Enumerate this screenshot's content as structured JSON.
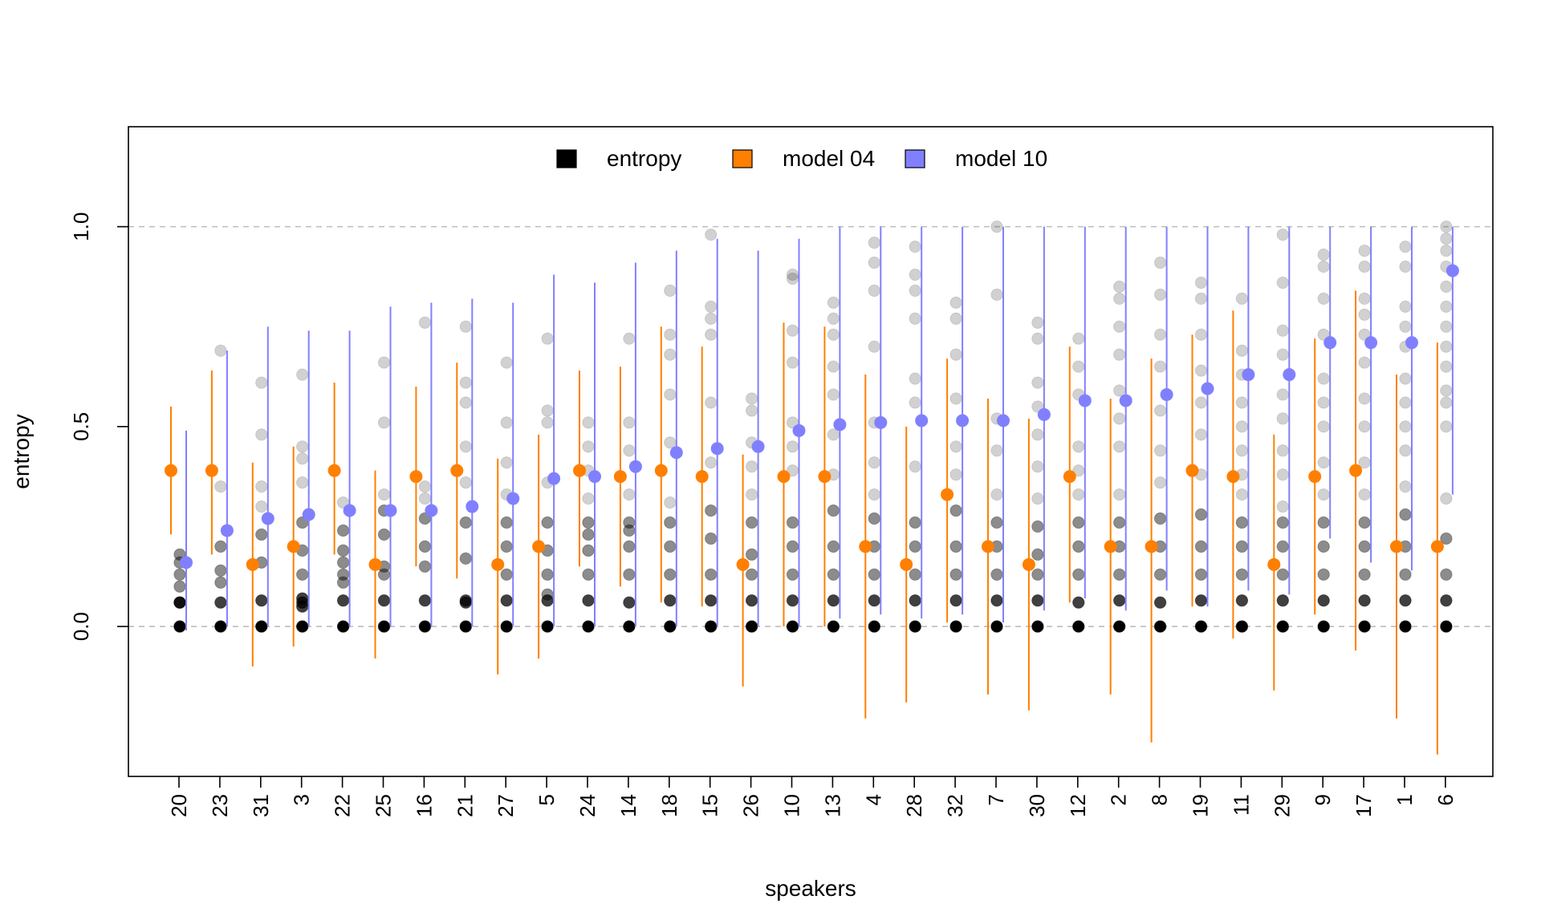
{
  "chart_data": {
    "type": "scatter",
    "title": "",
    "xlabel": "speakers",
    "ylabel": "entropy",
    "ylim": [
      -0.375,
      1.25
    ],
    "yticks": [
      0.0,
      0.5,
      1.0
    ],
    "ytick_labels": [
      "0.0",
      "0.5",
      "1.0"
    ],
    "reference_lines": [
      0.0,
      1.0
    ],
    "categories": [
      "20",
      "23",
      "31",
      "3",
      "22",
      "25",
      "16",
      "21",
      "27",
      "5",
      "24",
      "14",
      "18",
      "15",
      "26",
      "10",
      "13",
      "4",
      "28",
      "32",
      "7",
      "30",
      "12",
      "2",
      "8",
      "19",
      "11",
      "29",
      "9",
      "17",
      "1",
      "6"
    ],
    "legend": {
      "placement": "top",
      "entries": [
        {
          "label": "entropy",
          "color": "#000000"
        },
        {
          "label": "model 04",
          "color": "#ff7f00"
        },
        {
          "label": "model 10",
          "color": "#8080ff"
        }
      ]
    },
    "series": [
      {
        "name": "model 04",
        "color": "#ff7f00",
        "mean": [
          0.39,
          0.39,
          0.155,
          0.2,
          0.39,
          0.155,
          0.375,
          0.39,
          0.155,
          0.2,
          0.39,
          0.375,
          0.39,
          0.375,
          0.155,
          0.375,
          0.375,
          0.2,
          0.155,
          0.33,
          0.2,
          0.155,
          0.375,
          0.2,
          0.2,
          0.39,
          0.375,
          0.155,
          0.375,
          0.39,
          0.2,
          0.2
        ],
        "lower": [
          0.23,
          0.18,
          -0.1,
          -0.05,
          0.18,
          -0.08,
          0.15,
          0.12,
          -0.12,
          -0.08,
          0.15,
          0.1,
          0.06,
          0.05,
          -0.15,
          0.0,
          0.0,
          -0.23,
          -0.19,
          0.01,
          -0.17,
          -0.21,
          0.06,
          -0.17,
          -0.29,
          0.05,
          -0.03,
          -0.16,
          0.03,
          -0.06,
          -0.23,
          -0.32
        ],
        "upper": [
          0.55,
          0.64,
          0.41,
          0.45,
          0.61,
          0.39,
          0.6,
          0.66,
          0.42,
          0.48,
          0.64,
          0.65,
          0.75,
          0.7,
          0.43,
          0.76,
          0.75,
          0.63,
          0.5,
          0.67,
          0.57,
          0.52,
          0.7,
          0.57,
          0.67,
          0.73,
          0.79,
          0.48,
          0.72,
          0.84,
          0.63,
          0.71
        ]
      },
      {
        "name": "model 10",
        "color": "#8080ff",
        "mean": [
          0.16,
          0.24,
          0.27,
          0.28,
          0.29,
          0.29,
          0.29,
          0.3,
          0.32,
          0.37,
          0.375,
          0.4,
          0.435,
          0.445,
          0.45,
          0.49,
          0.505,
          0.51,
          0.515,
          0.515,
          0.515,
          0.53,
          0.565,
          0.565,
          0.58,
          0.595,
          0.63,
          0.63,
          0.71,
          0.71,
          0.71,
          0.89
        ],
        "lower": [
          -0.01,
          0.0,
          0.0,
          0.0,
          0.0,
          0.0,
          0.0,
          0.0,
          0.0,
          0.0,
          0.0,
          0.0,
          0.0,
          0.0,
          0.0,
          0.0,
          0.02,
          0.03,
          0.02,
          0.03,
          0.01,
          0.04,
          0.07,
          0.04,
          0.09,
          0.05,
          0.09,
          0.08,
          0.22,
          0.16,
          0.14,
          0.33
        ],
        "upper": [
          0.49,
          0.69,
          0.75,
          0.74,
          0.74,
          0.8,
          0.81,
          0.82,
          0.81,
          0.88,
          0.86,
          0.91,
          0.94,
          0.97,
          0.94,
          0.97,
          1.0,
          1.0,
          1.0,
          1.0,
          1.0,
          1.0,
          1.0,
          1.0,
          1.0,
          1.0,
          1.0,
          1.0,
          1.0,
          1.0,
          1.0,
          1.0
        ]
      },
      {
        "name": "entropy",
        "color": "#000000",
        "points": [
          [
            0,
            0.06,
            0.13,
            0.16,
            0.1,
            0.18,
            0.06
          ],
          [
            0,
            0.06,
            0.14,
            0.2,
            0.35,
            0.69,
            0.11
          ],
          [
            0,
            0.065,
            0.16,
            0.23,
            0.3,
            0.35,
            0.48,
            0.61
          ],
          [
            0,
            0.06,
            0.07,
            0.13,
            0.19,
            0.26,
            0.36,
            0.42,
            0.45,
            0.63,
            0.05
          ],
          [
            0,
            0.065,
            0.11,
            0.16,
            0.19,
            0.24,
            0.31,
            0.13
          ],
          [
            0,
            0.065,
            0.13,
            0.23,
            0.29,
            0.33,
            0.51,
            0.66,
            0.15
          ],
          [
            0,
            0.065,
            0.15,
            0.2,
            0.27,
            0.32,
            0.35,
            0.76
          ],
          [
            0,
            0.065,
            0.17,
            0.26,
            0.36,
            0.45,
            0.56,
            0.61,
            0.75,
            0.06
          ],
          [
            0,
            0.065,
            0.13,
            0.2,
            0.26,
            0.33,
            0.41,
            0.51,
            0.66
          ],
          [
            0,
            0.065,
            0.13,
            0.19,
            0.26,
            0.36,
            0.51,
            0.54,
            0.72,
            0.08
          ],
          [
            0,
            0.065,
            0.13,
            0.19,
            0.26,
            0.32,
            0.39,
            0.45,
            0.51,
            0.23
          ],
          [
            0,
            0.06,
            0.13,
            0.2,
            0.26,
            0.33,
            0.44,
            0.51,
            0.72,
            0.24
          ],
          [
            0,
            0.065,
            0.13,
            0.2,
            0.26,
            0.31,
            0.46,
            0.58,
            0.68,
            0.73,
            0.84
          ],
          [
            0,
            0.065,
            0.13,
            0.22,
            0.29,
            0.41,
            0.56,
            0.73,
            0.77,
            0.8,
            0.98
          ],
          [
            0,
            0.065,
            0.13,
            0.18,
            0.26,
            0.33,
            0.4,
            0.46,
            0.54,
            0.57
          ],
          [
            0,
            0.065,
            0.13,
            0.2,
            0.26,
            0.39,
            0.45,
            0.51,
            0.66,
            0.74,
            0.87,
            0.88
          ],
          [
            0,
            0.065,
            0.13,
            0.2,
            0.29,
            0.38,
            0.48,
            0.58,
            0.65,
            0.73,
            0.77,
            0.81
          ],
          [
            0,
            0.065,
            0.13,
            0.2,
            0.27,
            0.33,
            0.41,
            0.51,
            0.7,
            0.84,
            0.91,
            0.96
          ],
          [
            0,
            0.065,
            0.13,
            0.2,
            0.26,
            0.4,
            0.56,
            0.62,
            0.77,
            0.84,
            0.88,
            0.95
          ],
          [
            0,
            0.065,
            0.13,
            0.2,
            0.29,
            0.38,
            0.45,
            0.57,
            0.68,
            0.77,
            0.81
          ],
          [
            0,
            0.065,
            0.13,
            0.2,
            0.26,
            0.33,
            0.44,
            0.52,
            0.83,
            1.0
          ],
          [
            0,
            0.065,
            0.13,
            0.18,
            0.25,
            0.32,
            0.4,
            0.48,
            0.55,
            0.61,
            0.72,
            0.76
          ],
          [
            0,
            0.06,
            0.13,
            0.2,
            0.26,
            0.33,
            0.39,
            0.45,
            0.58,
            0.65,
            0.72
          ],
          [
            0,
            0.065,
            0.13,
            0.2,
            0.26,
            0.33,
            0.45,
            0.52,
            0.59,
            0.68,
            0.75,
            0.82,
            0.85
          ],
          [
            0,
            0.06,
            0.13,
            0.2,
            0.27,
            0.36,
            0.44,
            0.54,
            0.65,
            0.73,
            0.83,
            0.91
          ],
          [
            0,
            0.065,
            0.13,
            0.2,
            0.28,
            0.38,
            0.48,
            0.56,
            0.64,
            0.73,
            0.82,
            0.86
          ],
          [
            0,
            0.065,
            0.13,
            0.2,
            0.26,
            0.33,
            0.38,
            0.44,
            0.5,
            0.56,
            0.63,
            0.69,
            0.82
          ],
          [
            0,
            0.065,
            0.13,
            0.2,
            0.26,
            0.3,
            0.38,
            0.44,
            0.52,
            0.58,
            0.68,
            0.74,
            0.86,
            0.98
          ],
          [
            0,
            0.065,
            0.13,
            0.2,
            0.26,
            0.33,
            0.41,
            0.5,
            0.56,
            0.62,
            0.73,
            0.82,
            0.9,
            0.93
          ],
          [
            0,
            0.065,
            0.13,
            0.2,
            0.26,
            0.33,
            0.41,
            0.5,
            0.57,
            0.66,
            0.73,
            0.78,
            0.82,
            0.9,
            0.94
          ],
          [
            0,
            0.065,
            0.13,
            0.2,
            0.28,
            0.35,
            0.44,
            0.5,
            0.56,
            0.62,
            0.7,
            0.75,
            0.8,
            0.9,
            0.95
          ],
          [
            0,
            0.065,
            0.13,
            0.22,
            0.32,
            0.5,
            0.56,
            0.59,
            0.65,
            0.7,
            0.75,
            0.8,
            0.85,
            0.9,
            0.94,
            0.97,
            1.0
          ]
        ]
      }
    ]
  }
}
